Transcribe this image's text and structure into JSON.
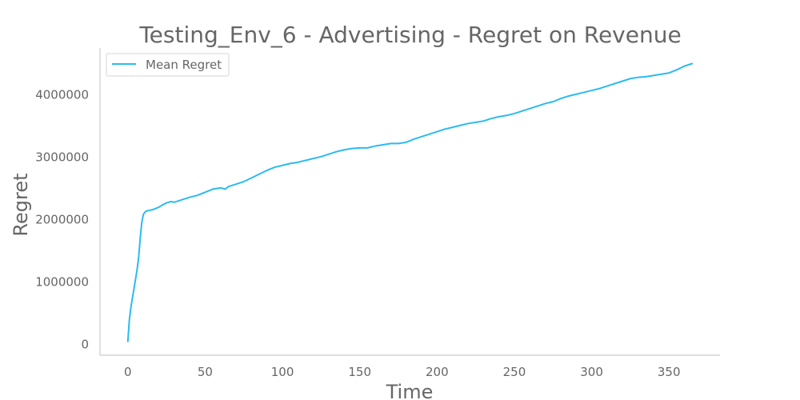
{
  "chart_data": {
    "type": "line",
    "title": "Testing_Env_6 - Advertising - Regret on Revenue",
    "xlabel": "Time",
    "ylabel": "Regret",
    "xlim": [
      -18,
      383
    ],
    "ylim": [
      -170000,
      4750000
    ],
    "x_ticks": [
      0,
      50,
      100,
      150,
      200,
      250,
      300,
      350
    ],
    "x_tick_labels": [
      "0",
      "50",
      "100",
      "150",
      "200",
      "250",
      "300",
      "350"
    ],
    "y_ticks": [
      0,
      1000000,
      2000000,
      3000000,
      4000000
    ],
    "y_tick_labels": [
      "0",
      "1000000",
      "2000000",
      "3000000",
      "4000000"
    ],
    "grid": false,
    "legend_position": "top-left",
    "series": [
      {
        "name": "Mean Regret",
        "color": "#2bbbef",
        "x": [
          0,
          1,
          2,
          3,
          4,
          5,
          6,
          7,
          8,
          9,
          10,
          11,
          12,
          14,
          16,
          18,
          20,
          22,
          25,
          28,
          30,
          35,
          40,
          45,
          50,
          55,
          60,
          63,
          65,
          70,
          75,
          80,
          85,
          90,
          95,
          100,
          105,
          110,
          115,
          120,
          125,
          130,
          135,
          140,
          145,
          150,
          155,
          160,
          165,
          170,
          175,
          180,
          185,
          190,
          195,
          200,
          205,
          210,
          215,
          220,
          225,
          230,
          235,
          240,
          245,
          250,
          255,
          260,
          265,
          270,
          275,
          280,
          285,
          290,
          295,
          300,
          305,
          310,
          315,
          320,
          325,
          330,
          335,
          340,
          345,
          350,
          355,
          360,
          365
        ],
        "values": [
          50000,
          400000,
          600000,
          750000,
          900000,
          1050000,
          1200000,
          1400000,
          1700000,
          1950000,
          2080000,
          2120000,
          2140000,
          2150000,
          2160000,
          2180000,
          2200000,
          2230000,
          2270000,
          2290000,
          2280000,
          2320000,
          2360000,
          2390000,
          2440000,
          2490000,
          2510000,
          2490000,
          2530000,
          2570000,
          2610000,
          2670000,
          2730000,
          2790000,
          2840000,
          2870000,
          2900000,
          2920000,
          2950000,
          2980000,
          3010000,
          3050000,
          3090000,
          3120000,
          3140000,
          3150000,
          3150000,
          3180000,
          3200000,
          3220000,
          3220000,
          3240000,
          3290000,
          3330000,
          3370000,
          3410000,
          3450000,
          3480000,
          3510000,
          3540000,
          3560000,
          3580000,
          3620000,
          3650000,
          3670000,
          3700000,
          3740000,
          3780000,
          3820000,
          3860000,
          3890000,
          3940000,
          3980000,
          4010000,
          4040000,
          4070000,
          4100000,
          4140000,
          4180000,
          4220000,
          4260000,
          4280000,
          4290000,
          4310000,
          4330000,
          4350000,
          4400000,
          4460000,
          4500000
        ]
      }
    ]
  }
}
